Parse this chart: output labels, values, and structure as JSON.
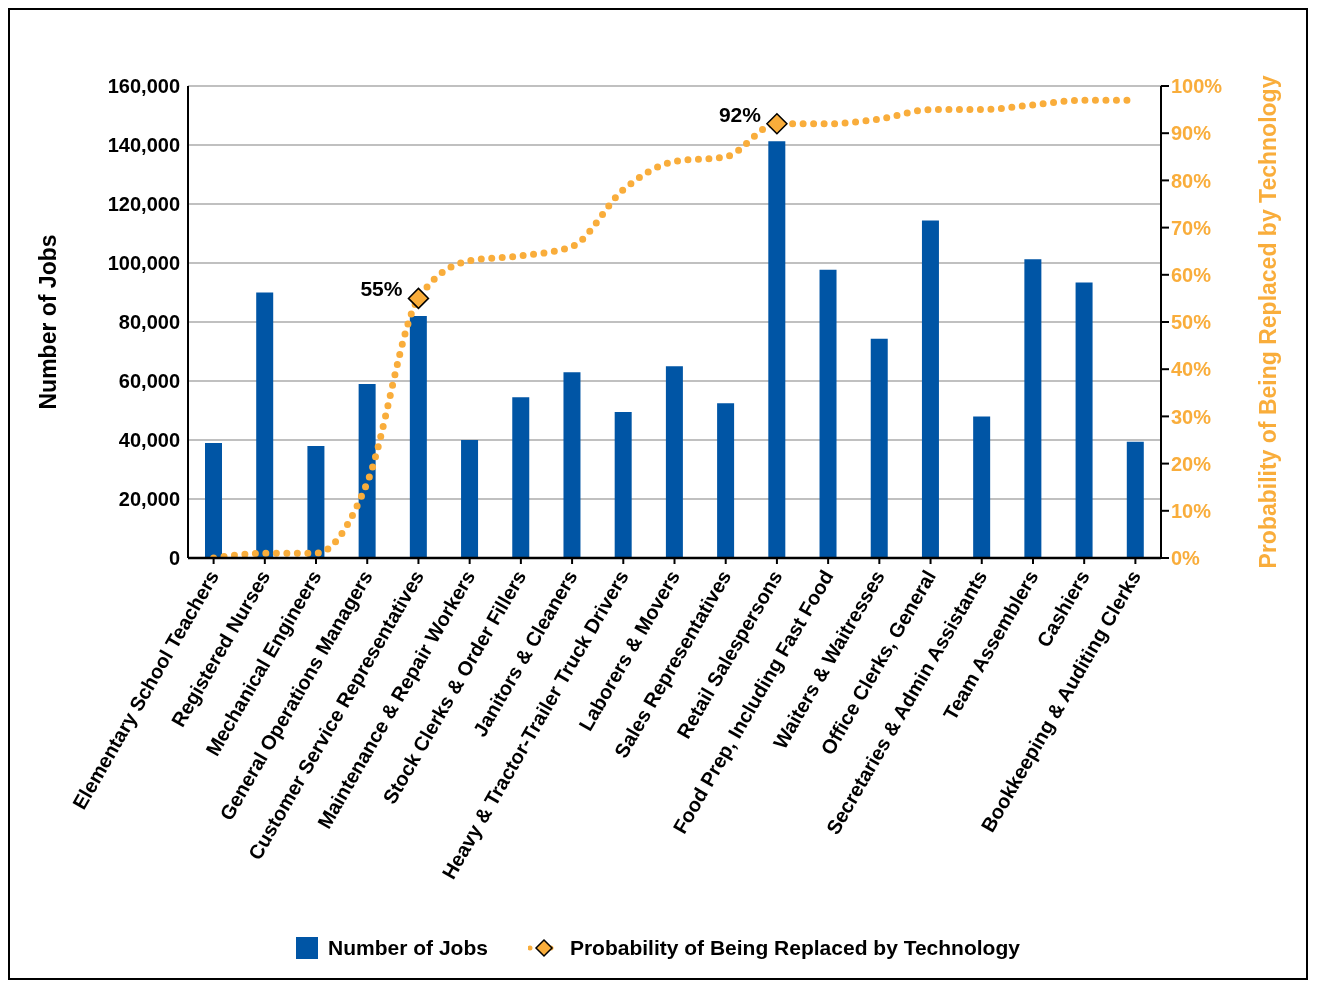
{
  "chart_data": {
    "type": "bar",
    "categories": [
      "Elementary School Teachers",
      "Registered Nurses",
      "Mechanical Engineers",
      "General Operations Managers",
      "Customer Service Representatives",
      "Maintenance & Repair Workers",
      "Stock Clerks & Order Fillers",
      "Janitors & Cleaners",
      "Heavy & Tractor-Trailer Truck Drivers",
      "Laborers & Movers",
      "Sales Representatives",
      "Retail Salespersons",
      "Food Prep, Including Fast Food",
      "Waiters & Waitresses",
      "Office Clerks, General",
      "Secretaries & Admin Assistants",
      "Team Assemblers",
      "Cashiers",
      "Bookkeeping & Auditing Clerks"
    ],
    "series": [
      {
        "name": "Number of Jobs",
        "color": "#0055a5",
        "values": [
          39000,
          90000,
          38000,
          59000,
          82000,
          40000,
          54500,
          63000,
          49500,
          65000,
          52500,
          141300,
          97700,
          74300,
          114400,
          48000,
          101300,
          93400,
          39400
        ]
      },
      {
        "name": "Probability of Being Replaced by Technology",
        "type": "line",
        "axis": "y2",
        "color": "#f9ad3b",
        "line_style": "dotted",
        "values": [
          0,
          1,
          1,
          16,
          55,
          63,
          64,
          66,
          78,
          84,
          85,
          92,
          92,
          93,
          95,
          95,
          96,
          97,
          97
        ],
        "value_labels": [
          null,
          null,
          null,
          null,
          "55%",
          null,
          null,
          null,
          null,
          null,
          null,
          "92%",
          null,
          null,
          null,
          null,
          null,
          null,
          null
        ]
      }
    ],
    "ylabel": "Number of Jobs",
    "y2label": "Probability of Being Replaced by Technology",
    "ylim": [
      0,
      160000
    ],
    "yticks": [
      {
        "value": 0,
        "label": "0"
      },
      {
        "value": 20000,
        "label": "20,000"
      },
      {
        "value": 40000,
        "label": "40,000"
      },
      {
        "value": 60000,
        "label": "60,000"
      },
      {
        "value": 80000,
        "label": "80,000"
      },
      {
        "value": 100000,
        "label": "100,000"
      },
      {
        "value": 120000,
        "label": "120,000"
      },
      {
        "value": 140000,
        "label": "140,000"
      },
      {
        "value": 160000,
        "label": "160,000"
      }
    ],
    "y2lim": [
      0,
      100
    ],
    "y2ticks": [
      {
        "value": 0,
        "label": "0%"
      },
      {
        "value": 10,
        "label": "10%"
      },
      {
        "value": 20,
        "label": "20%"
      },
      {
        "value": 30,
        "label": "30%"
      },
      {
        "value": 40,
        "label": "40%"
      },
      {
        "value": 50,
        "label": "50%"
      },
      {
        "value": 60,
        "label": "60%"
      },
      {
        "value": 70,
        "label": "70%"
      },
      {
        "value": 80,
        "label": "80%"
      },
      {
        "value": 90,
        "label": "90%"
      },
      {
        "value": 100,
        "label": "100%"
      }
    ],
    "grid": "y",
    "legend": "bottom"
  }
}
